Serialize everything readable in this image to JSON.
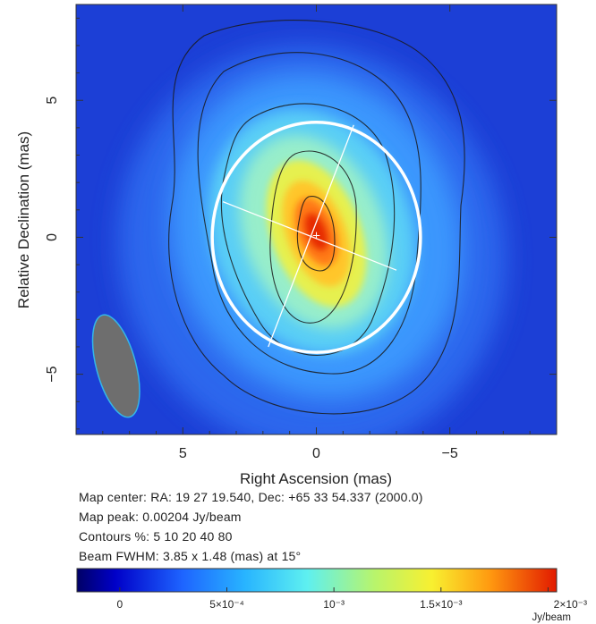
{
  "chart_data": {
    "type": "heatmap",
    "xlabel": "Right Ascension  (mas)",
    "ylabel": "Relative Declination  (mas)",
    "xlim": [
      9,
      -9
    ],
    "ylim": [
      -7.2,
      8.5
    ],
    "x_ticks": [
      {
        "value": 5,
        "label": "5"
      },
      {
        "value": 0,
        "label": "0"
      },
      {
        "value": -5,
        "label": "−5"
      }
    ],
    "y_ticks": [
      {
        "value": 5,
        "label": "5"
      },
      {
        "value": 0,
        "label": "0"
      },
      {
        "value": -5,
        "label": "−5"
      }
    ],
    "source": {
      "peak_x": 0,
      "peak_y": 0.2,
      "major_axis_pa_deg": -21,
      "contour_levels_percent": [
        5,
        10,
        20,
        40,
        80
      ]
    },
    "overlay_ellipse": {
      "center_x": 0,
      "center_y": 0,
      "semi_axis_x": 3.9,
      "semi_axis_y": 4.2,
      "line1": {
        "x1": 3.5,
        "y1": 1.3,
        "x2": -3.0,
        "y2": -1.2
      },
      "line2": {
        "x1": 1.8,
        "y1": -4.0,
        "x2": -1.4,
        "y2": 4.1
      }
    },
    "beam": {
      "center_x": 7.5,
      "center_y": -4.7,
      "major_mas": 3.85,
      "minor_mas": 1.48,
      "pa_deg": 15,
      "color": "#6e6e6e",
      "edge_color": "#34b6e8"
    },
    "colorbar": {
      "min": -0.0002,
      "max": 0.00204,
      "ticks": [
        {
          "value": 0,
          "label": "0"
        },
        {
          "value": 0.0005,
          "label": "5×10⁻⁴"
        },
        {
          "value": 0.001,
          "label": "10⁻³"
        },
        {
          "value": 0.0015,
          "label": "1.5×10⁻³"
        },
        {
          "value": 0.002,
          "label": "2×10⁻³"
        }
      ],
      "unit": "Jy/beam"
    }
  },
  "info": {
    "map_center": "Map center:  RA: 19 27 19.540,  Dec: +65 33 54.337 (2000.0)",
    "map_peak": "Map peak: 0.00204 Jy/beam",
    "contours": "Contours %: 5 10 20 40 80",
    "beam_fwhm": "Beam FWHM: 3.85 x 1.48 (mas) at 15°"
  },
  "colors": {
    "background_field": "#1c3fd6",
    "overlay_ellipse": "#ffffff",
    "contour": "#1a1a1a"
  }
}
